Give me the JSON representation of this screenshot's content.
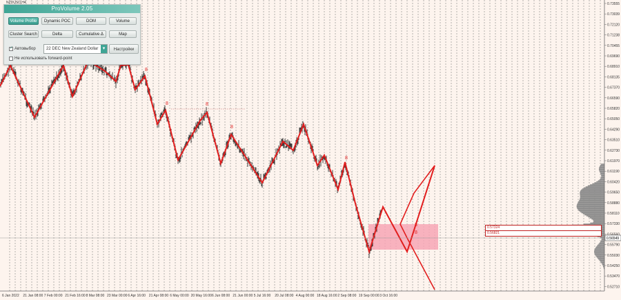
{
  "symbol": "NZDUSD,H4",
  "panel": {
    "title": "ProVolume 2.05",
    "buttons": [
      {
        "label": "Volume Profile",
        "active": true
      },
      {
        "label": "Dynamic POC",
        "active": false
      },
      {
        "label": "DOM",
        "active": false
      },
      {
        "label": "Volume",
        "active": false
      },
      {
        "label": "Cluster Search",
        "active": false
      },
      {
        "label": "Delta",
        "active": false
      },
      {
        "label": "Cumulative Δ",
        "active": false
      },
      {
        "label": "Map",
        "active": false
      }
    ],
    "autoselect_label": "Автовыбор",
    "autoselect_checked": true,
    "instrument_value": "22 DEC New Zealand Dollar",
    "settings_label": "Настройки",
    "forward_point_label": "Не использовать forward-point",
    "forward_point_checked": false
  },
  "price_axis": [
    "0.73555",
    "0.73039",
    "0.72120",
    "0.71238",
    "0.70455",
    "0.69690",
    "0.68910",
    "0.68135",
    "0.67370",
    "0.66590",
    "0.65820",
    "0.65050",
    "0.64290",
    "0.63510",
    "0.62730",
    "0.61970",
    "0.61190",
    "0.60420",
    "0.59650",
    "0.58880",
    "0.58110",
    "0.57330",
    "0.56560",
    "0.55790",
    "0.55030",
    "0.54250",
    "0.53470",
    "0.52710"
  ],
  "current_price": "0.56549",
  "levels": {
    "upper": "0.57324",
    "lower": "0.56821"
  },
  "time_axis": [
    "6 Jan 2022",
    "21 Jan 08:00",
    "7 Feb 00:00",
    "21 Feb 16:00",
    "8 Mar 08:00",
    "23 Mar 00:00",
    "6 Apr 16:00",
    "21 Apr 08:00",
    "6 May 00:00",
    "20 May 16:00",
    "6 Jun 08:00",
    "21 Jun 00:00",
    "5 Jul 16:00",
    "20 Jul 08:00",
    "4 Aug 00:00",
    "18 Aug 16:00",
    "2 Sep 08:00",
    "19 Sep 00:00",
    "3 Oct 16:00"
  ],
  "zigzag_markers": [
    "8",
    "8",
    "8",
    "8",
    "8",
    "8",
    "8"
  ],
  "colors": {
    "zigzag": "#e21e1e",
    "zone": "#f7a6b5",
    "accent": "#3fa595",
    "profile": "#8a8a8a"
  }
}
